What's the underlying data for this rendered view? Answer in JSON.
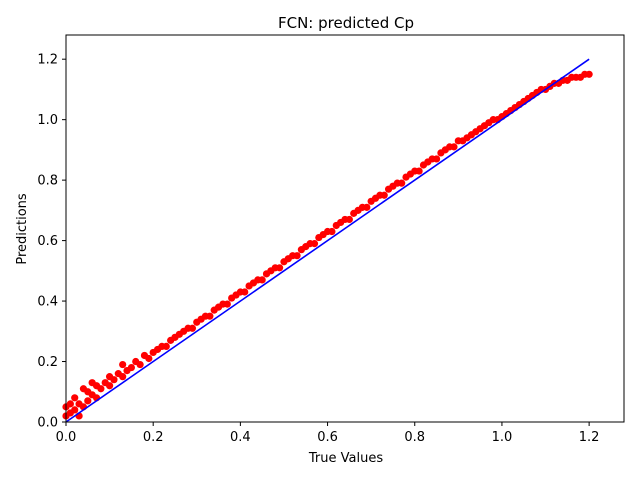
{
  "chart_data": {
    "type": "scatter",
    "title": "FCN: predicted Cp",
    "xlabel": "True Values",
    "ylabel": "Predictions",
    "xlim": [
      0,
      1.28
    ],
    "ylim": [
      0,
      1.28
    ],
    "xticks": [
      0.0,
      0.2,
      0.4,
      0.6,
      0.8,
      1.0,
      1.2
    ],
    "yticks": [
      0.0,
      0.2,
      0.4,
      0.6,
      0.8,
      1.0,
      1.2
    ],
    "xtick_labels": [
      "0.0",
      "0.2",
      "0.4",
      "0.6",
      "0.8",
      "1.0",
      "1.2"
    ],
    "ytick_labels": [
      "0.0",
      "0.2",
      "0.4",
      "0.6",
      "0.8",
      "1.0",
      "1.2"
    ],
    "grid": false,
    "series": [
      {
        "marker_color": "#ff0000",
        "points": [
          [
            0.0,
            0.02
          ],
          [
            0.0,
            0.05
          ],
          [
            0.01,
            0.03
          ],
          [
            0.01,
            0.06
          ],
          [
            0.02,
            0.04
          ],
          [
            0.02,
            0.08
          ],
          [
            0.03,
            0.02
          ],
          [
            0.03,
            0.06
          ],
          [
            0.04,
            0.05
          ],
          [
            0.04,
            0.11
          ],
          [
            0.05,
            0.07
          ],
          [
            0.05,
            0.1
          ],
          [
            0.06,
            0.09
          ],
          [
            0.06,
            0.13
          ],
          [
            0.07,
            0.08
          ],
          [
            0.07,
            0.12
          ],
          [
            0.08,
            0.11
          ],
          [
            0.09,
            0.13
          ],
          [
            0.1,
            0.12
          ],
          [
            0.1,
            0.15
          ],
          [
            0.11,
            0.14
          ],
          [
            0.12,
            0.16
          ],
          [
            0.13,
            0.15
          ],
          [
            0.13,
            0.19
          ],
          [
            0.14,
            0.17
          ],
          [
            0.15,
            0.18
          ],
          [
            0.16,
            0.2
          ],
          [
            0.17,
            0.19
          ],
          [
            0.18,
            0.22
          ],
          [
            0.19,
            0.21
          ],
          [
            0.2,
            0.23
          ],
          [
            0.21,
            0.24
          ],
          [
            0.22,
            0.25
          ],
          [
            0.23,
            0.25
          ],
          [
            0.24,
            0.27
          ],
          [
            0.25,
            0.28
          ],
          [
            0.26,
            0.29
          ],
          [
            0.27,
            0.3
          ],
          [
            0.28,
            0.31
          ],
          [
            0.29,
            0.31
          ],
          [
            0.3,
            0.33
          ],
          [
            0.31,
            0.34
          ],
          [
            0.32,
            0.35
          ],
          [
            0.33,
            0.35
          ],
          [
            0.34,
            0.37
          ],
          [
            0.35,
            0.38
          ],
          [
            0.36,
            0.39
          ],
          [
            0.37,
            0.39
          ],
          [
            0.38,
            0.41
          ],
          [
            0.39,
            0.42
          ],
          [
            0.4,
            0.43
          ],
          [
            0.41,
            0.43
          ],
          [
            0.42,
            0.45
          ],
          [
            0.43,
            0.46
          ],
          [
            0.44,
            0.47
          ],
          [
            0.45,
            0.47
          ],
          [
            0.46,
            0.49
          ],
          [
            0.47,
            0.5
          ],
          [
            0.48,
            0.51
          ],
          [
            0.49,
            0.51
          ],
          [
            0.5,
            0.53
          ],
          [
            0.51,
            0.54
          ],
          [
            0.52,
            0.55
          ],
          [
            0.53,
            0.55
          ],
          [
            0.54,
            0.57
          ],
          [
            0.55,
            0.58
          ],
          [
            0.56,
            0.59
          ],
          [
            0.57,
            0.59
          ],
          [
            0.58,
            0.61
          ],
          [
            0.59,
            0.62
          ],
          [
            0.6,
            0.63
          ],
          [
            0.61,
            0.63
          ],
          [
            0.62,
            0.65
          ],
          [
            0.63,
            0.66
          ],
          [
            0.64,
            0.67
          ],
          [
            0.65,
            0.67
          ],
          [
            0.66,
            0.69
          ],
          [
            0.67,
            0.7
          ],
          [
            0.68,
            0.71
          ],
          [
            0.69,
            0.71
          ],
          [
            0.7,
            0.73
          ],
          [
            0.71,
            0.74
          ],
          [
            0.72,
            0.75
          ],
          [
            0.73,
            0.75
          ],
          [
            0.74,
            0.77
          ],
          [
            0.75,
            0.78
          ],
          [
            0.76,
            0.79
          ],
          [
            0.77,
            0.79
          ],
          [
            0.78,
            0.81
          ],
          [
            0.79,
            0.82
          ],
          [
            0.8,
            0.83
          ],
          [
            0.81,
            0.83
          ],
          [
            0.82,
            0.85
          ],
          [
            0.83,
            0.86
          ],
          [
            0.84,
            0.87
          ],
          [
            0.85,
            0.87
          ],
          [
            0.86,
            0.89
          ],
          [
            0.87,
            0.9
          ],
          [
            0.88,
            0.91
          ],
          [
            0.89,
            0.91
          ],
          [
            0.9,
            0.93
          ],
          [
            0.91,
            0.93
          ],
          [
            0.92,
            0.94
          ],
          [
            0.93,
            0.95
          ],
          [
            0.94,
            0.96
          ],
          [
            0.95,
            0.97
          ],
          [
            0.96,
            0.98
          ],
          [
            0.97,
            0.99
          ],
          [
            0.98,
            1.0
          ],
          [
            0.99,
            1.0
          ],
          [
            1.0,
            1.01
          ],
          [
            1.01,
            1.02
          ],
          [
            1.02,
            1.03
          ],
          [
            1.03,
            1.04
          ],
          [
            1.04,
            1.05
          ],
          [
            1.05,
            1.06
          ],
          [
            1.06,
            1.07
          ],
          [
            1.07,
            1.08
          ],
          [
            1.08,
            1.09
          ],
          [
            1.09,
            1.1
          ],
          [
            1.1,
            1.1
          ],
          [
            1.11,
            1.11
          ],
          [
            1.12,
            1.12
          ],
          [
            1.13,
            1.12
          ],
          [
            1.14,
            1.13
          ],
          [
            1.15,
            1.13
          ],
          [
            1.16,
            1.14
          ],
          [
            1.17,
            1.14
          ],
          [
            1.18,
            1.14
          ],
          [
            1.19,
            1.15
          ],
          [
            1.2,
            1.15
          ]
        ]
      }
    ],
    "reference_line": {
      "color": "#0000ff",
      "x": [
        0.0,
        1.2
      ],
      "y": [
        0.0,
        1.2
      ]
    }
  }
}
